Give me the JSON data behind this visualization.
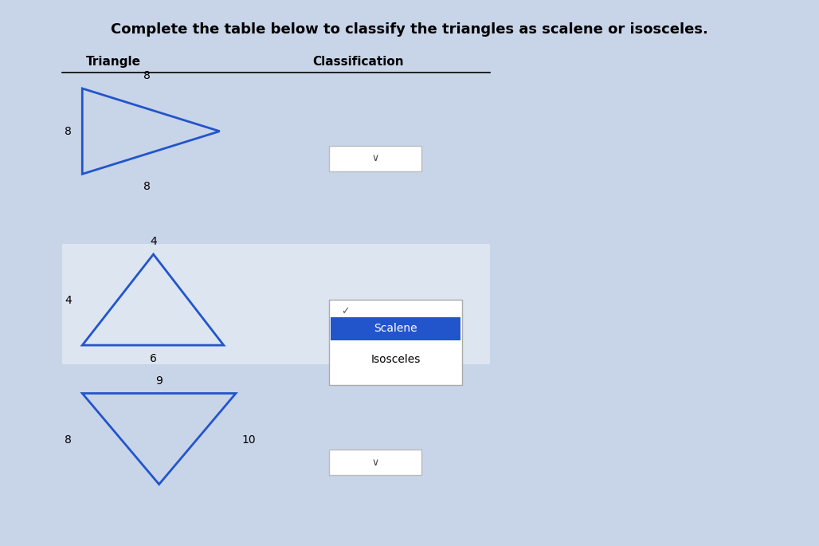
{
  "title": "Complete the table below to classify the triangles as scalene or isosceles.",
  "title_fontsize": 13,
  "col1_header": "Triangle",
  "col2_header": "Classification",
  "row_bg": "#c8d4e8",
  "row2_bg": "#dce4f0",
  "white": "#ffffff",
  "blue_highlight": "#2255cc",
  "triangle_color": "#2255cc",
  "triangle_linewidth": 2.0,
  "scalene_label": "Scalene",
  "isosceles_label": "Isosceles",
  "fig_bg": "#c8d4e8"
}
